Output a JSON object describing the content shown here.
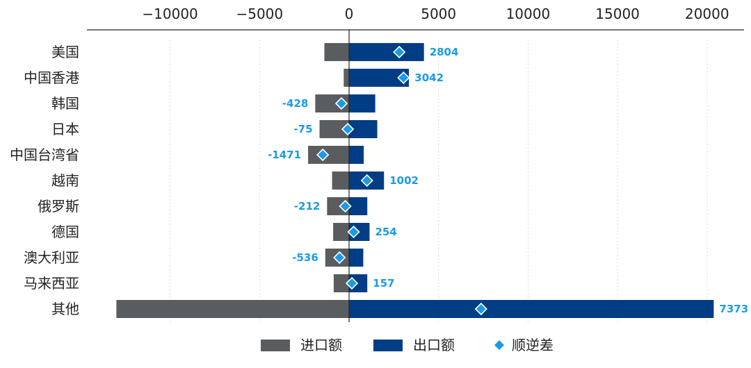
{
  "chart_data": {
    "type": "bar",
    "orientation": "horizontal",
    "stacked_diverging": true,
    "title": "",
    "xlabel": "",
    "ylabel": "",
    "xlim": [
      -15000,
      21000
    ],
    "xticks": [
      -10000,
      -5000,
      0,
      5000,
      10000,
      15000,
      20000
    ],
    "xtick_labels": [
      "−10000",
      "−5000",
      "0",
      "5000",
      "10000",
      "15000",
      "20000"
    ],
    "axis_position": "top",
    "categories": [
      "美国",
      "中国香港",
      "韩国",
      "日本",
      "中国台湾省",
      "越南",
      "俄罗斯",
      "德国",
      "澳大利亚",
      "马来西亚",
      "其他"
    ],
    "series": [
      {
        "name": "进口额",
        "color": "#595d60",
        "values": [
          -1380,
          -300,
          -1890,
          -1650,
          -2290,
          -950,
          -1230,
          -890,
          -1330,
          -860,
          -13000
        ]
      },
      {
        "name": "出口额",
        "color": "#003d84",
        "values": [
          4184,
          3342,
          1462,
          1575,
          819,
          1952,
          1018,
          1144,
          794,
          1017,
          20373
        ]
      },
      {
        "name": "顺逆差",
        "color": "#1a9be6",
        "marker": "diamond",
        "values": [
          2804,
          3042,
          -428,
          -75,
          -1471,
          1002,
          -212,
          254,
          -536,
          157,
          7373
        ]
      }
    ],
    "data_labels": [
      "2804",
      "3042",
      "-428",
      "-75",
      "-1471",
      "1002",
      "-212",
      "254",
      "-536",
      "157",
      "7373"
    ],
    "legend": {
      "position": "bottom-center",
      "entries": [
        "进口额",
        "出口额",
        "顺逆差"
      ]
    }
  }
}
